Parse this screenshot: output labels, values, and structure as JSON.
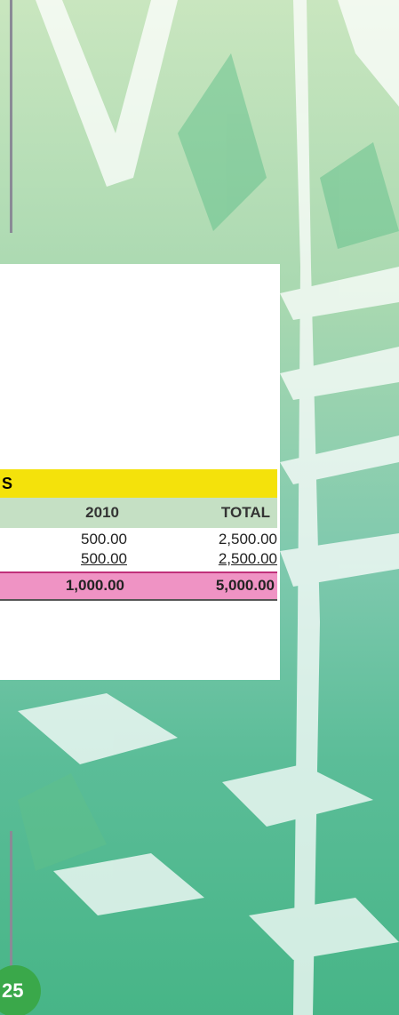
{
  "table": {
    "title": "S",
    "header": [
      "2010",
      "TOTAL"
    ],
    "rows": [
      [
        "500.00",
        "2,500.00"
      ],
      [
        "500.00",
        "2,500.00"
      ]
    ],
    "total": [
      "1,000.00",
      "5,000.00"
    ]
  },
  "page_number": "25"
}
